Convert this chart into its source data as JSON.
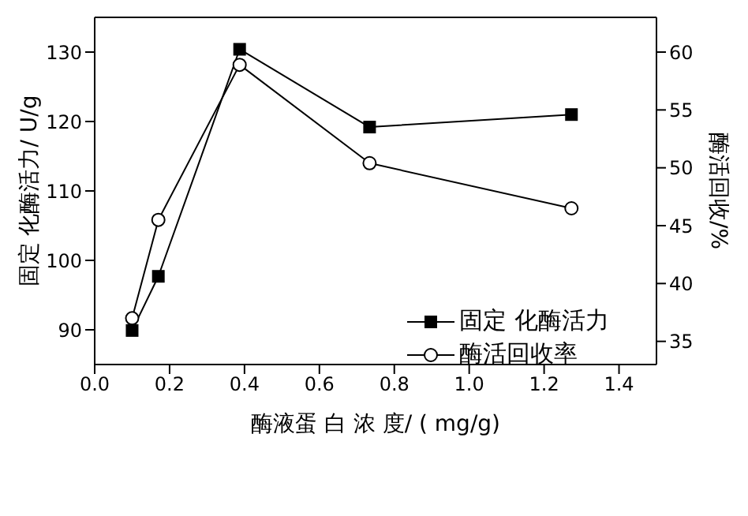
{
  "chart_data": {
    "type": "line",
    "xlabel": "酶液蛋 白 浓 度/ ( mg/g)",
    "ylabel": "固定 化酶活力/ U/g",
    "y2label": "酶活回收/%",
    "x": [
      0.1,
      0.17,
      0.387,
      0.734,
      1.273
    ],
    "series": [
      {
        "name": "固定 化酶活力",
        "color": "#000000",
        "marker": "square",
        "values": [
          89.9,
          97.7,
          130.4,
          119.2,
          121.0
        ]
      },
      {
        "name": "酶活回收率",
        "color": "#000000",
        "marker": "circle",
        "axis": "y2",
        "values": [
          37.0,
          45.5,
          58.9,
          50.4,
          46.5
        ]
      }
    ],
    "xlim": [
      0,
      1.5
    ],
    "xticks": [
      {
        "value": 0,
        "label": "0.0"
      },
      0.2,
      0.4,
      0.6,
      0.8,
      {
        "value": 1,
        "label": "1.0"
      },
      1.2,
      1.4
    ],
    "ylim": [
      85,
      135
    ],
    "yticks": [
      90,
      100,
      110,
      120,
      130
    ],
    "y2lim": [
      33,
      63
    ],
    "y2ticks": [
      35,
      40,
      45,
      50,
      55,
      60
    ],
    "legend": "bottom right",
    "grid": false,
    "line_style": "solid"
  }
}
